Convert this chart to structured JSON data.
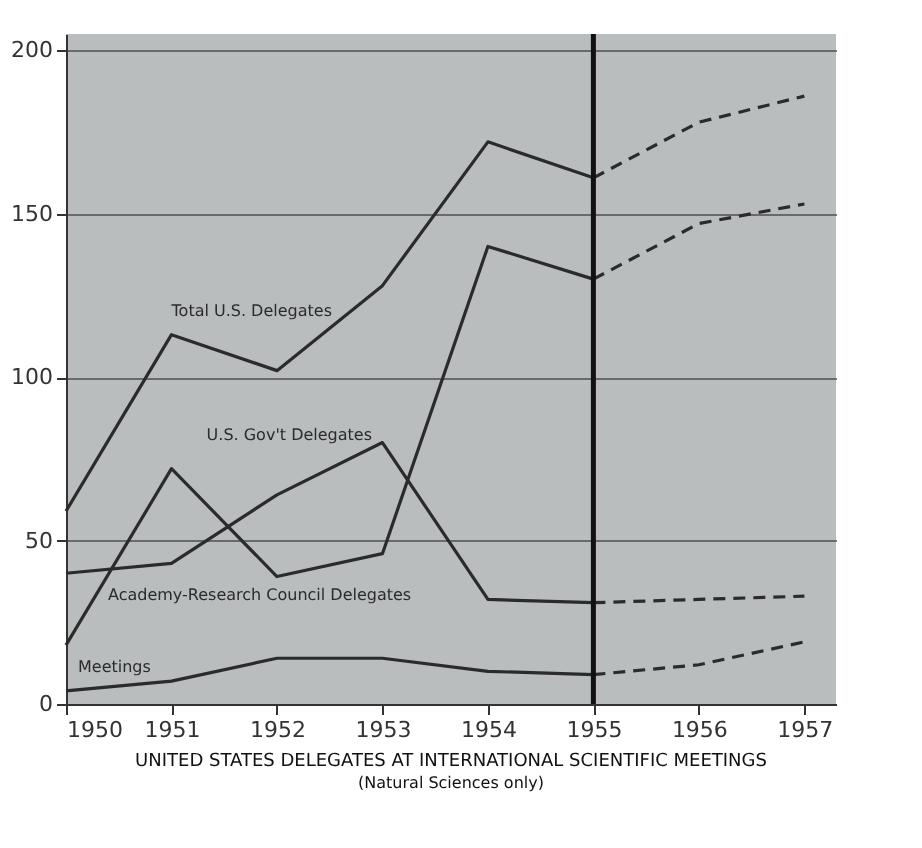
{
  "chart_data": {
    "type": "line",
    "title": "UNITED STATES DELEGATES AT INTERNATIONAL SCIENTIFIC MEETINGS",
    "subtitle": "(Natural Sciences only)",
    "xlim": [
      1950,
      1957.3
    ],
    "xticks": [
      1950,
      1951,
      1952,
      1953,
      1954,
      1955,
      1956,
      1957
    ],
    "ylim": [
      0,
      205
    ],
    "yticks": [
      0,
      50,
      100,
      150,
      200
    ],
    "grid": "y",
    "marker": "none",
    "series": [
      {
        "name": "Total U.S. Delegates",
        "color": "#2b2b2b",
        "line_style": "solid",
        "x": [
          1950,
          1951,
          1952,
          1953,
          1954,
          1955
        ],
        "values": [
          59,
          113,
          102,
          128,
          172,
          161
        ]
      },
      {
        "color": "#2b2b2b",
        "line_style": "dashed",
        "x": [
          1955,
          1956,
          1957
        ],
        "values": [
          161,
          178,
          186
        ]
      },
      {
        "name": "U.S. Gov't Delegates",
        "color": "#2b2b2b",
        "line_style": "solid",
        "x": [
          1950,
          1951,
          1952,
          1953,
          1954,
          1955
        ],
        "values": [
          40,
          43,
          64,
          80,
          32,
          31
        ]
      },
      {
        "color": "#2b2b2b",
        "line_style": "dashed",
        "x": [
          1955,
          1956,
          1957
        ],
        "values": [
          31,
          32,
          33
        ]
      },
      {
        "name": "Academy-Research Council Delegates",
        "color": "#2b2b2b",
        "line_style": "solid",
        "x": [
          1950,
          1951,
          1952,
          1953,
          1954,
          1955
        ],
        "values": [
          18,
          72,
          39,
          46,
          140,
          130
        ]
      },
      {
        "color": "#2b2b2b",
        "line_style": "dashed",
        "x": [
          1955,
          1956,
          1957
        ],
        "values": [
          130,
          147,
          153
        ]
      },
      {
        "name": "Meetings",
        "color": "#2b2b2b",
        "line_style": "solid",
        "x": [
          1950,
          1951,
          1952,
          1953,
          1954,
          1955
        ],
        "values": [
          4,
          7,
          14,
          14,
          10,
          9
        ]
      },
      {
        "color": "#2b2b2b",
        "line_style": "dashed",
        "x": [
          1955,
          1956,
          1957
        ],
        "values": [
          9,
          12,
          19
        ]
      }
    ],
    "ref_lines": [
      {
        "axis": "x",
        "value": 1955,
        "color": "#111111",
        "line_style": "solid"
      }
    ]
  }
}
